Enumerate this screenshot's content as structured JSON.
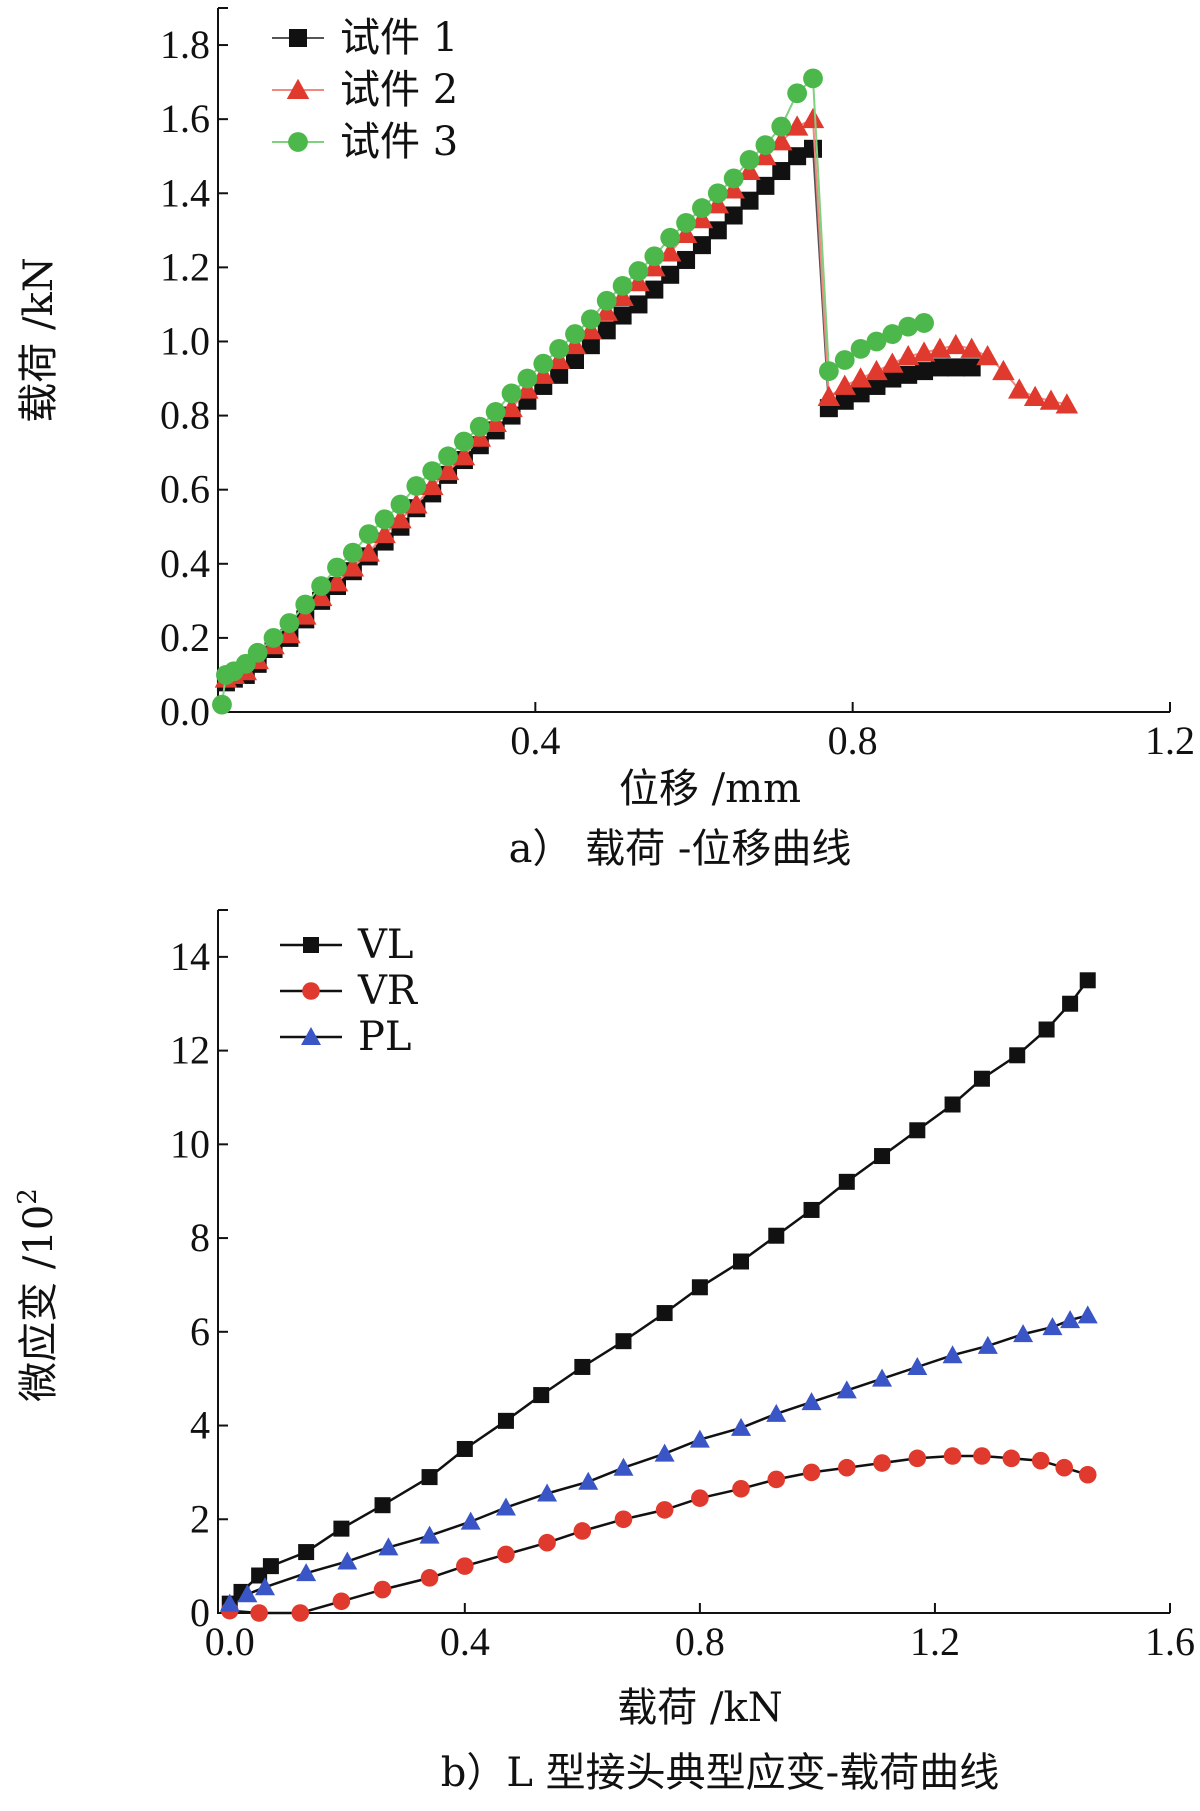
{
  "chart_data": [
    {
      "type": "line",
      "caption": "a）  载荷 -位移曲线",
      "xlabel": "位移 /mm",
      "ylabel": "载荷 /kN",
      "xlim": [
        0,
        1.2
      ],
      "ylim": [
        0,
        1.9
      ],
      "xticks": [
        "0.4",
        "0.8",
        "1.2"
      ],
      "xtick_values": [
        0.4,
        0.8,
        1.2
      ],
      "yticks": [
        "0.0",
        "0.2",
        "0.4",
        "0.6",
        "0.8",
        "1.0",
        "1.2",
        "1.4",
        "1.6",
        "1.8"
      ],
      "ytick_values": [
        0.0,
        0.2,
        0.4,
        0.6,
        0.8,
        1.0,
        1.2,
        1.4,
        1.6,
        1.8
      ],
      "grid": false,
      "legend_position": "top-left",
      "series": [
        {
          "name": "试件 1",
          "color": "#111111",
          "line_color": "#555555",
          "marker": "square",
          "points": [
            [
              0.01,
              0.08
            ],
            [
              0.02,
              0.09
            ],
            [
              0.035,
              0.1
            ],
            [
              0.05,
              0.13
            ],
            [
              0.07,
              0.17
            ],
            [
              0.09,
              0.2
            ],
            [
              0.11,
              0.25
            ],
            [
              0.13,
              0.3
            ],
            [
              0.15,
              0.34
            ],
            [
              0.17,
              0.38
            ],
            [
              0.19,
              0.42
            ],
            [
              0.21,
              0.46
            ],
            [
              0.23,
              0.5
            ],
            [
              0.25,
              0.55
            ],
            [
              0.27,
              0.59
            ],
            [
              0.29,
              0.64
            ],
            [
              0.31,
              0.68
            ],
            [
              0.33,
              0.72
            ],
            [
              0.35,
              0.76
            ],
            [
              0.37,
              0.8
            ],
            [
              0.39,
              0.84
            ],
            [
              0.41,
              0.88
            ],
            [
              0.43,
              0.91
            ],
            [
              0.45,
              0.95
            ],
            [
              0.47,
              0.99
            ],
            [
              0.49,
              1.03
            ],
            [
              0.51,
              1.07
            ],
            [
              0.53,
              1.1
            ],
            [
              0.55,
              1.14
            ],
            [
              0.57,
              1.18
            ],
            [
              0.59,
              1.22
            ],
            [
              0.61,
              1.26
            ],
            [
              0.63,
              1.3
            ],
            [
              0.65,
              1.34
            ],
            [
              0.67,
              1.38
            ],
            [
              0.69,
              1.42
            ],
            [
              0.71,
              1.46
            ],
            [
              0.73,
              1.5
            ],
            [
              0.75,
              1.52
            ],
            [
              0.77,
              0.82
            ],
            [
              0.79,
              0.84
            ],
            [
              0.81,
              0.86
            ],
            [
              0.83,
              0.88
            ],
            [
              0.85,
              0.9
            ],
            [
              0.87,
              0.91
            ],
            [
              0.89,
              0.92
            ],
            [
              0.91,
              0.93
            ],
            [
              0.93,
              0.93
            ],
            [
              0.95,
              0.93
            ]
          ]
        },
        {
          "name": "试件 2",
          "color": "#e03a2e",
          "line_color": "#f08a80",
          "marker": "triangle",
          "points": [
            [
              0.01,
              0.09
            ],
            [
              0.02,
              0.1
            ],
            [
              0.035,
              0.11
            ],
            [
              0.05,
              0.14
            ],
            [
              0.07,
              0.18
            ],
            [
              0.09,
              0.21
            ],
            [
              0.11,
              0.26
            ],
            [
              0.13,
              0.31
            ],
            [
              0.15,
              0.35
            ],
            [
              0.17,
              0.39
            ],
            [
              0.19,
              0.43
            ],
            [
              0.21,
              0.48
            ],
            [
              0.23,
              0.52
            ],
            [
              0.25,
              0.56
            ],
            [
              0.27,
              0.61
            ],
            [
              0.29,
              0.65
            ],
            [
              0.31,
              0.69
            ],
            [
              0.33,
              0.74
            ],
            [
              0.35,
              0.78
            ],
            [
              0.37,
              0.82
            ],
            [
              0.39,
              0.87
            ],
            [
              0.41,
              0.91
            ],
            [
              0.43,
              0.95
            ],
            [
              0.45,
              0.99
            ],
            [
              0.47,
              1.03
            ],
            [
              0.49,
              1.08
            ],
            [
              0.51,
              1.12
            ],
            [
              0.53,
              1.16
            ],
            [
              0.55,
              1.2
            ],
            [
              0.57,
              1.24
            ],
            [
              0.59,
              1.29
            ],
            [
              0.61,
              1.33
            ],
            [
              0.63,
              1.37
            ],
            [
              0.65,
              1.41
            ],
            [
              0.67,
              1.46
            ],
            [
              0.69,
              1.5
            ],
            [
              0.71,
              1.54
            ],
            [
              0.73,
              1.58
            ],
            [
              0.75,
              1.6
            ],
            [
              0.77,
              0.85
            ],
            [
              0.79,
              0.88
            ],
            [
              0.81,
              0.9
            ],
            [
              0.83,
              0.92
            ],
            [
              0.85,
              0.94
            ],
            [
              0.87,
              0.96
            ],
            [
              0.89,
              0.97
            ],
            [
              0.91,
              0.98
            ],
            [
              0.93,
              0.99
            ],
            [
              0.95,
              0.98
            ],
            [
              0.97,
              0.96
            ],
            [
              0.99,
              0.92
            ],
            [
              1.01,
              0.87
            ],
            [
              1.03,
              0.85
            ],
            [
              1.05,
              0.84
            ],
            [
              1.07,
              0.83
            ]
          ]
        },
        {
          "name": "试件 3",
          "color": "#4cb84c",
          "line_color": "#7fd07f",
          "marker": "circle",
          "points": [
            [
              0.005,
              0.02
            ],
            [
              0.01,
              0.1
            ],
            [
              0.02,
              0.11
            ],
            [
              0.035,
              0.13
            ],
            [
              0.05,
              0.16
            ],
            [
              0.07,
              0.2
            ],
            [
              0.09,
              0.24
            ],
            [
              0.11,
              0.29
            ],
            [
              0.13,
              0.34
            ],
            [
              0.15,
              0.39
            ],
            [
              0.17,
              0.43
            ],
            [
              0.19,
              0.48
            ],
            [
              0.21,
              0.52
            ],
            [
              0.23,
              0.56
            ],
            [
              0.25,
              0.61
            ],
            [
              0.27,
              0.65
            ],
            [
              0.29,
              0.69
            ],
            [
              0.31,
              0.73
            ],
            [
              0.33,
              0.77
            ],
            [
              0.35,
              0.81
            ],
            [
              0.37,
              0.86
            ],
            [
              0.39,
              0.9
            ],
            [
              0.41,
              0.94
            ],
            [
              0.43,
              0.98
            ],
            [
              0.45,
              1.02
            ],
            [
              0.47,
              1.06
            ],
            [
              0.49,
              1.11
            ],
            [
              0.51,
              1.15
            ],
            [
              0.53,
              1.19
            ],
            [
              0.55,
              1.23
            ],
            [
              0.57,
              1.28
            ],
            [
              0.59,
              1.32
            ],
            [
              0.61,
              1.36
            ],
            [
              0.63,
              1.4
            ],
            [
              0.65,
              1.44
            ],
            [
              0.67,
              1.49
            ],
            [
              0.69,
              1.53
            ],
            [
              0.71,
              1.58
            ],
            [
              0.73,
              1.67
            ],
            [
              0.75,
              1.71
            ],
            [
              0.77,
              0.92
            ],
            [
              0.79,
              0.95
            ],
            [
              0.81,
              0.98
            ],
            [
              0.83,
              1.0
            ],
            [
              0.85,
              1.02
            ],
            [
              0.87,
              1.04
            ],
            [
              0.89,
              1.05
            ]
          ]
        }
      ]
    },
    {
      "type": "line",
      "caption": "b）L 型接头典型应变-载荷曲线",
      "xlabel": "载荷 /kN",
      "ylabel": "微应变 /10",
      "ylabel_exponent": "2",
      "xlim": [
        -0.02,
        1.6
      ],
      "ylim": [
        0,
        15
      ],
      "xticks": [
        "0.0",
        "0.4",
        "0.8",
        "1.2",
        "1.6"
      ],
      "xtick_values": [
        0.0,
        0.4,
        0.8,
        1.2,
        1.6
      ],
      "yticks": [
        "0",
        "2",
        "4",
        "6",
        "8",
        "10",
        "12",
        "14"
      ],
      "ytick_values": [
        0,
        2,
        4,
        6,
        8,
        10,
        12,
        14
      ],
      "grid": false,
      "legend_position": "top-left",
      "series": [
        {
          "name": "VL",
          "color": "#111111",
          "line_color": "#111111",
          "marker": "square",
          "points": [
            [
              0.0,
              0.2
            ],
            [
              0.02,
              0.45
            ],
            [
              0.05,
              0.8
            ],
            [
              0.07,
              1.0
            ],
            [
              0.13,
              1.3
            ],
            [
              0.19,
              1.8
            ],
            [
              0.26,
              2.3
            ],
            [
              0.34,
              2.9
            ],
            [
              0.4,
              3.5
            ],
            [
              0.47,
              4.1
            ],
            [
              0.53,
              4.65
            ],
            [
              0.6,
              5.25
            ],
            [
              0.67,
              5.8
            ],
            [
              0.74,
              6.4
            ],
            [
              0.8,
              6.95
            ],
            [
              0.87,
              7.5
            ],
            [
              0.93,
              8.05
            ],
            [
              0.99,
              8.6
            ],
            [
              1.05,
              9.2
            ],
            [
              1.11,
              9.75
            ],
            [
              1.17,
              10.3
            ],
            [
              1.23,
              10.85
            ],
            [
              1.28,
              11.4
            ],
            [
              1.34,
              11.9
            ],
            [
              1.39,
              12.45
            ],
            [
              1.43,
              13.0
            ],
            [
              1.46,
              13.5
            ]
          ]
        },
        {
          "name": "VR",
          "color": "#e03a2e",
          "line_color": "#111111",
          "marker": "circle",
          "points": [
            [
              0.0,
              0.05
            ],
            [
              0.05,
              0.0
            ],
            [
              0.12,
              0.0
            ],
            [
              0.19,
              0.25
            ],
            [
              0.26,
              0.5
            ],
            [
              0.34,
              0.75
            ],
            [
              0.4,
              1.0
            ],
            [
              0.47,
              1.25
            ],
            [
              0.54,
              1.5
            ],
            [
              0.6,
              1.75
            ],
            [
              0.67,
              2.0
            ],
            [
              0.74,
              2.2
            ],
            [
              0.8,
              2.45
            ],
            [
              0.87,
              2.65
            ],
            [
              0.93,
              2.85
            ],
            [
              0.99,
              3.0
            ],
            [
              1.05,
              3.1
            ],
            [
              1.11,
              3.2
            ],
            [
              1.17,
              3.3
            ],
            [
              1.23,
              3.35
            ],
            [
              1.28,
              3.35
            ],
            [
              1.33,
              3.3
            ],
            [
              1.38,
              3.25
            ],
            [
              1.42,
              3.1
            ],
            [
              1.46,
              2.95
            ]
          ]
        },
        {
          "name": "PL",
          "color": "#3a56c6",
          "line_color": "#111111",
          "marker": "triangle",
          "points": [
            [
              0.0,
              0.2
            ],
            [
              0.03,
              0.4
            ],
            [
              0.06,
              0.55
            ],
            [
              0.13,
              0.85
            ],
            [
              0.2,
              1.1
            ],
            [
              0.27,
              1.4
            ],
            [
              0.34,
              1.65
            ],
            [
              0.41,
              1.95
            ],
            [
              0.47,
              2.25
            ],
            [
              0.54,
              2.55
            ],
            [
              0.61,
              2.8
            ],
            [
              0.67,
              3.1
            ],
            [
              0.74,
              3.4
            ],
            [
              0.8,
              3.7
            ],
            [
              0.87,
              3.95
            ],
            [
              0.93,
              4.25
            ],
            [
              0.99,
              4.5
            ],
            [
              1.05,
              4.75
            ],
            [
              1.11,
              5.0
            ],
            [
              1.17,
              5.25
            ],
            [
              1.23,
              5.5
            ],
            [
              1.29,
              5.7
            ],
            [
              1.35,
              5.95
            ],
            [
              1.4,
              6.1
            ],
            [
              1.43,
              6.25
            ],
            [
              1.46,
              6.35
            ]
          ]
        }
      ]
    }
  ]
}
